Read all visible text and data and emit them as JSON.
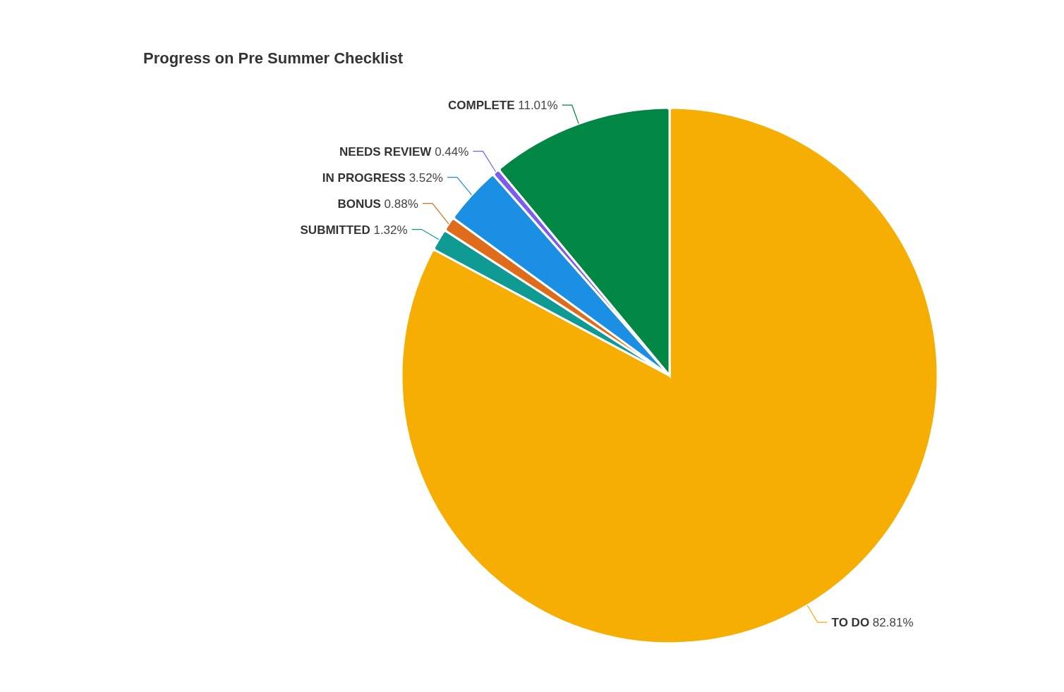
{
  "chart_data": {
    "type": "pie",
    "title": "Progress on Pre Summer Checklist",
    "categories": [
      "TO DO",
      "SUBMITTED",
      "BONUS",
      "IN PROGRESS",
      "NEEDS REVIEW",
      "COMPLETE"
    ],
    "values": [
      82.81,
      1.32,
      0.88,
      3.52,
      0.44,
      11.01
    ],
    "colors": [
      "#f6ae02",
      "#0f9a94",
      "#e06c1b",
      "#1a8fe3",
      "#7b5cf0",
      "#018744"
    ],
    "value_labels": [
      "82.81%",
      "1.32%",
      "0.88%",
      "3.52%",
      "0.44%",
      "11.01%"
    ]
  }
}
